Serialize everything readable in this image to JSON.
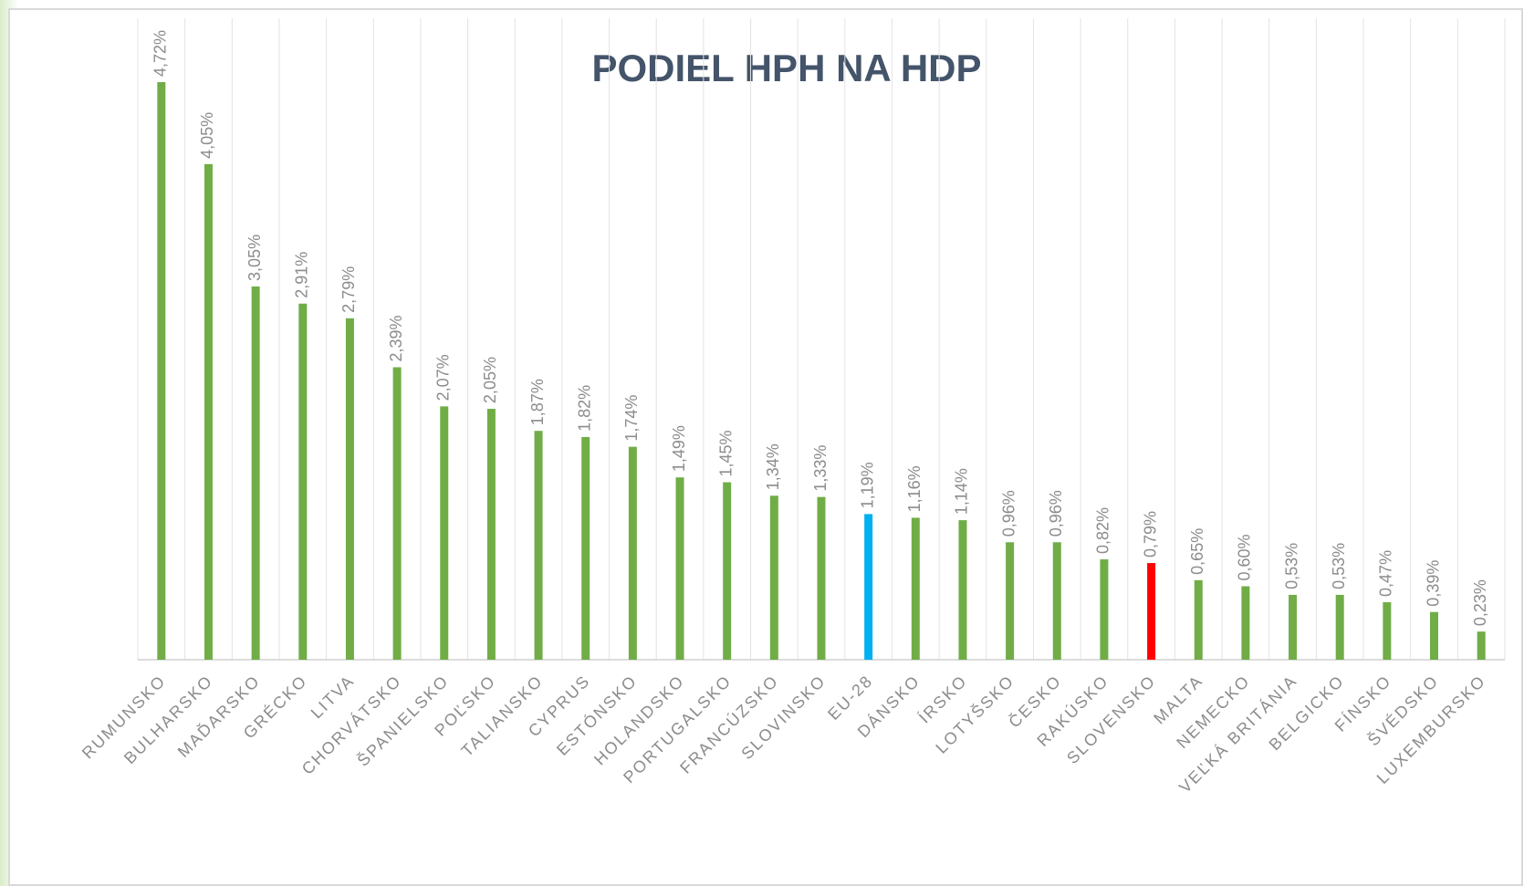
{
  "chart_data": {
    "type": "bar",
    "title": "PODIEL HPH NA HDP",
    "categories": [
      "RUMUNSKO",
      "BULHARSKO",
      "MAĎARSKO",
      "GRÉCKO",
      "LITVA",
      "CHORVÁTSKO",
      "ŠPANIELSKO",
      "POĽSKO",
      "TALIANSKO",
      "CYPRUS",
      "ESTÓNSKO",
      "HOLANDSKO",
      "PORTUGALSKO",
      "FRANCÚZSKO",
      "SLOVINSKO",
      "EU-28",
      "DÁNSKO",
      "ÍRSKO",
      "LOTYŠSKO",
      "ČESKO",
      "RAKÚSKO",
      "SLOVENSKO",
      "MALTA",
      "NEMECKO",
      "VEĽKÁ BRITÁNIA",
      "BELGICKO",
      "FÍNSKO",
      "ŠVÉDSKO",
      "LUXEMBURSKO"
    ],
    "values": [
      4.72,
      4.05,
      3.05,
      2.91,
      2.79,
      2.39,
      2.07,
      2.05,
      1.87,
      1.82,
      1.74,
      1.49,
      1.45,
      1.34,
      1.33,
      1.19,
      1.16,
      1.14,
      0.96,
      0.96,
      0.82,
      0.79,
      0.65,
      0.6,
      0.53,
      0.53,
      0.47,
      0.39,
      0.23
    ],
    "value_labels": [
      "4,72%",
      "4,05%",
      "3,05%",
      "2,91%",
      "2,79%",
      "2,39%",
      "2,07%",
      "2,05%",
      "1,87%",
      "1,82%",
      "1,74%",
      "1,49%",
      "1,45%",
      "1,34%",
      "1,33%",
      "1,19%",
      "1,16%",
      "1,14%",
      "0,96%",
      "0,96%",
      "0,82%",
      "0,79%",
      "0,65%",
      "0,60%",
      "0,53%",
      "0,53%",
      "0,47%",
      "0,39%",
      "0,23%"
    ],
    "colors": [
      "#70ad47",
      "#70ad47",
      "#70ad47",
      "#70ad47",
      "#70ad47",
      "#70ad47",
      "#70ad47",
      "#70ad47",
      "#70ad47",
      "#70ad47",
      "#70ad47",
      "#70ad47",
      "#70ad47",
      "#70ad47",
      "#70ad47",
      "#00b0f0",
      "#70ad47",
      "#70ad47",
      "#70ad47",
      "#70ad47",
      "#70ad47",
      "#ff0000",
      "#70ad47",
      "#70ad47",
      "#70ad47",
      "#70ad47",
      "#70ad47",
      "#70ad47",
      "#70ad47"
    ]
  }
}
